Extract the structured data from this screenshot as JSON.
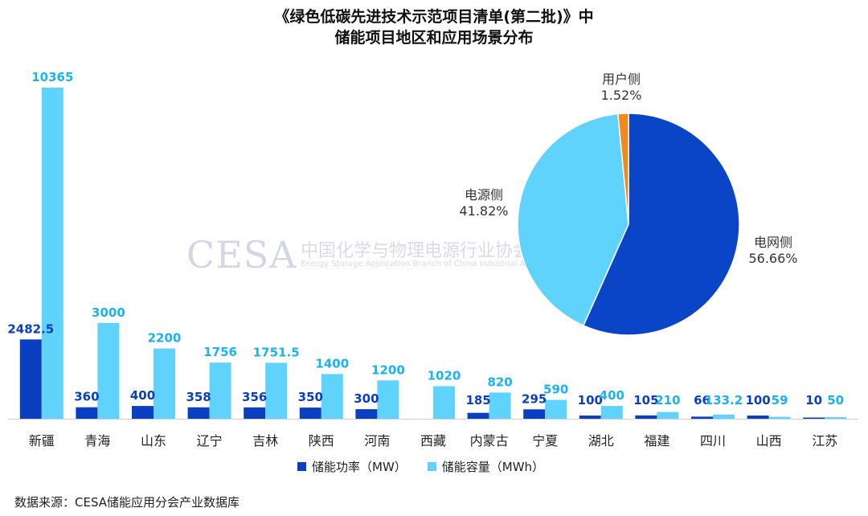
{
  "title_line1": "《绿色低碳先进技术示范项目清单(第二批)》中",
  "title_line2": "储能项目地区和应用场景分布",
  "source": "数据来源：CESA储能应用分会产业数据库",
  "watermark": {
    "logo": "CESA",
    "cn": "中国化学与物理电源行业协会储能应用分会",
    "en": "Energy Storage Application Branch of China Industrial Association of Power Sources"
  },
  "colors": {
    "power": "#0a3fc2",
    "capacity": "#5fd3fb",
    "pie_grid": "#0a44c7",
    "pie_source": "#5fd3fb",
    "pie_user": "#f08a1c"
  },
  "chart_data": [
    {
      "type": "bar",
      "categories": [
        "新疆",
        "青海",
        "山东",
        "辽宁",
        "吉林",
        "陕西",
        "河南",
        "西藏",
        "内蒙古",
        "宁夏",
        "湖北",
        "福建",
        "四川",
        "山西",
        "江苏"
      ],
      "series": [
        {
          "name": "储能功率（MW）",
          "values": [
            2482.5,
            360,
            400,
            358,
            356,
            350,
            300,
            null,
            185,
            295,
            100,
            105,
            66,
            100,
            10
          ]
        },
        {
          "name": "储能容量（MWh）",
          "values": [
            10365,
            3000,
            2200,
            1756,
            1751.5,
            1400,
            1200,
            1020,
            820,
            590,
            400,
            210,
            133.2,
            59,
            50
          ]
        }
      ],
      "power_labels": [
        "2482.5",
        "360",
        "400",
        "358",
        "356",
        "350",
        "300",
        "",
        "185",
        "295",
        "100",
        "105",
        "66",
        "100",
        "10"
      ],
      "capacity_labels": [
        "10365",
        "3000",
        "2200",
        "1756",
        "1751.5",
        "1400",
        "1200",
        "1020",
        "820",
        "590",
        "400",
        "210",
        "133.2",
        "59",
        "50"
      ],
      "ylim": [
        0,
        10365
      ],
      "grid": false,
      "legend_position": "bottom"
    },
    {
      "type": "pie",
      "labels": [
        "电网侧",
        "电源侧",
        "用户侧"
      ],
      "values": [
        56.66,
        41.82,
        1.52
      ],
      "value_labels": [
        "56.66%",
        "41.82%",
        "1.52%"
      ]
    }
  ]
}
